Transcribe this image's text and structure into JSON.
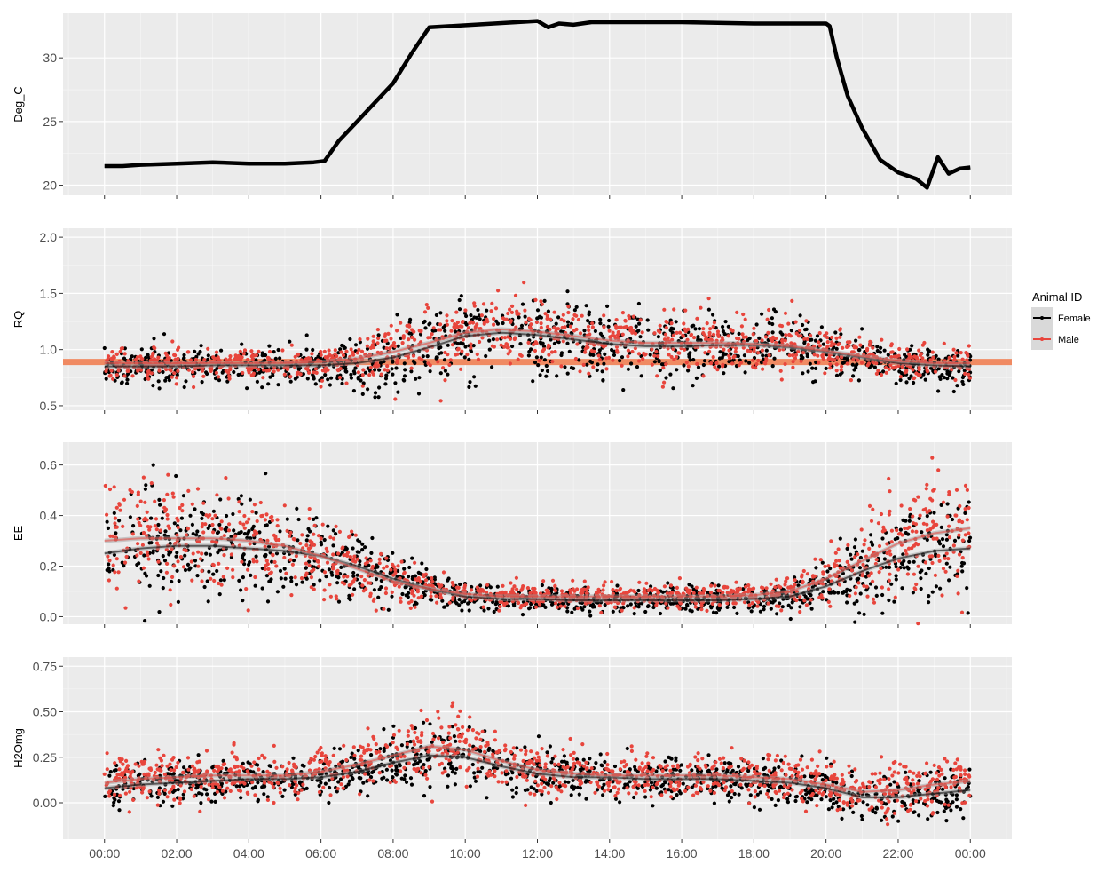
{
  "chart_data": {
    "type": "scatter",
    "x_ticks": [
      "00:00",
      "02:00",
      "04:00",
      "06:00",
      "08:00",
      "10:00",
      "12:00",
      "14:00",
      "16:00",
      "18:00",
      "20:00",
      "22:00",
      "00:00"
    ],
    "x_range_hours": [
      -1.15,
      25.15
    ],
    "legend": {
      "title": "Animal ID",
      "position": "right",
      "entries": [
        {
          "label": "Female",
          "color": "#000000"
        },
        {
          "label": "Male",
          "color": "#E8453C"
        }
      ]
    },
    "panels": [
      {
        "ylabel": "Deg_C",
        "ylim": [
          19.2,
          33.5
        ],
        "yticks": [
          20,
          25,
          30
        ],
        "ytick_labels": [
          "20",
          "25",
          "30"
        ],
        "series": [
          {
            "type": "line",
            "color": "#000000",
            "x_hours": [
              0,
              0.5,
              1,
              2,
              3,
              4,
              5,
              5.8,
              6.1,
              6.5,
              7,
              7.5,
              8,
              8.5,
              9,
              12,
              12.3,
              12.6,
              13,
              13.5,
              14,
              16,
              18,
              20,
              20.1,
              20.3,
              20.6,
              21,
              21.5,
              22,
              22.5,
              22.8,
              23.1,
              23.4,
              23.7,
              24
            ],
            "y": [
              21.5,
              21.5,
              21.6,
              21.7,
              21.8,
              21.7,
              21.7,
              21.8,
              21.9,
              23.5,
              25,
              26.5,
              28,
              30.3,
              32.4,
              32.9,
              32.4,
              32.7,
              32.6,
              32.8,
              32.8,
              32.8,
              32.7,
              32.7,
              32.5,
              30,
              27,
              24.5,
              22,
              21,
              20.5,
              19.8,
              22.2,
              20.9,
              21.3,
              21.4
            ]
          }
        ]
      },
      {
        "ylabel": "RQ",
        "ylim": [
          0.46,
          2.08
        ],
        "yticks": [
          0.5,
          1.0,
          1.5,
          2.0
        ],
        "ytick_labels": [
          "0.5",
          "1.0",
          "1.5",
          "2.0"
        ],
        "hline": {
          "y": 0.89,
          "color": "#F08A62"
        },
        "series": [
          {
            "name": "Female",
            "type": "scatter+smooth",
            "color": "#000000",
            "count": 1150,
            "seed": 11,
            "noise_sd": 0.09,
            "noise_scale": [
              0.9,
              0.9,
              0.9,
              0.9,
              0.9,
              0.9,
              1.0,
              1.4,
              1.8,
              2.0,
              2.0,
              2.0,
              2.0,
              2.0,
              1.9,
              1.8,
              1.7,
              1.6,
              1.6,
              1.6,
              1.3,
              1.0,
              0.9,
              0.9,
              0.9
            ],
            "trend": [
              0.85,
              0.85,
              0.85,
              0.86,
              0.86,
              0.86,
              0.86,
              0.88,
              0.93,
              1.02,
              1.12,
              1.15,
              1.13,
              1.09,
              1.05,
              1.03,
              1.03,
              1.04,
              1.04,
              1.02,
              0.98,
              0.93,
              0.88,
              0.86,
              0.85
            ]
          },
          {
            "name": "Male",
            "type": "scatter+smooth",
            "color": "#E8453C",
            "count": 1150,
            "seed": 23,
            "noise_sd": 0.075,
            "noise_scale": [
              0.9,
              0.9,
              0.9,
              0.9,
              0.9,
              0.9,
              1.0,
              1.4,
              1.8,
              2.0,
              2.0,
              2.0,
              2.0,
              2.0,
              1.9,
              1.8,
              1.7,
              1.6,
              1.6,
              1.6,
              1.3,
              1.0,
              0.9,
              0.9,
              0.9
            ],
            "trend": [
              0.88,
              0.88,
              0.88,
              0.88,
              0.88,
              0.88,
              0.89,
              0.92,
              0.98,
              1.06,
              1.15,
              1.18,
              1.16,
              1.12,
              1.08,
              1.06,
              1.06,
              1.06,
              1.05,
              1.03,
              0.99,
              0.94,
              0.9,
              0.88,
              0.88
            ]
          }
        ]
      },
      {
        "ylabel": "EE",
        "ylim": [
          -0.03,
          0.69
        ],
        "yticks": [
          0.0,
          0.2,
          0.4,
          0.6
        ],
        "ytick_labels": [
          "0.0",
          "0.2",
          "0.4",
          "0.6"
        ],
        "series": [
          {
            "name": "Female",
            "type": "scatter+smooth",
            "color": "#000000",
            "count": 1150,
            "seed": 37,
            "noise_sd": 0.06,
            "noise_scale": [
              1.8,
              1.8,
              1.8,
              1.8,
              1.7,
              1.6,
              1.4,
              1.1,
              0.8,
              0.5,
              0.4,
              0.4,
              0.4,
              0.4,
              0.4,
              0.4,
              0.4,
              0.4,
              0.4,
              0.5,
              0.9,
              1.4,
              1.7,
              1.8,
              1.8
            ],
            "trend": [
              0.25,
              0.27,
              0.28,
              0.28,
              0.27,
              0.26,
              0.24,
              0.2,
              0.15,
              0.11,
              0.08,
              0.07,
              0.07,
              0.065,
              0.065,
              0.065,
              0.065,
              0.065,
              0.07,
              0.08,
              0.12,
              0.18,
              0.23,
              0.26,
              0.27
            ]
          },
          {
            "name": "Male",
            "type": "scatter+smooth",
            "color": "#E8453C",
            "count": 1150,
            "seed": 41,
            "noise_sd": 0.06,
            "noise_scale": [
              1.8,
              1.8,
              1.8,
              1.8,
              1.7,
              1.6,
              1.4,
              1.1,
              0.8,
              0.5,
              0.4,
              0.4,
              0.4,
              0.4,
              0.4,
              0.4,
              0.4,
              0.4,
              0.4,
              0.5,
              0.9,
              1.4,
              1.7,
              1.8,
              1.8
            ],
            "trend": [
              0.3,
              0.31,
              0.31,
              0.31,
              0.3,
              0.28,
              0.24,
              0.19,
              0.14,
              0.11,
              0.09,
              0.08,
              0.08,
              0.08,
              0.08,
              0.08,
              0.08,
              0.08,
              0.085,
              0.1,
              0.15,
              0.22,
              0.29,
              0.33,
              0.35
            ]
          }
        ]
      },
      {
        "ylabel": "H2Omg",
        "ylim": [
          -0.2,
          0.8
        ],
        "yticks": [
          0.0,
          0.25,
          0.5,
          0.75
        ],
        "ytick_labels": [
          "0.00",
          "0.25",
          "0.50",
          "0.75"
        ],
        "series": [
          {
            "name": "Female",
            "type": "scatter+smooth",
            "color": "#000000",
            "count": 1150,
            "seed": 53,
            "noise_sd": 0.055,
            "noise_scale": [
              1,
              1,
              1,
              1,
              1,
              1,
              1,
              1.1,
              1.3,
              1.6,
              1.7,
              1.4,
              1.2,
              1.1,
              1,
              1,
              1,
              1,
              1,
              1,
              1.1,
              1.2,
              1.2,
              1.1,
              1.1
            ],
            "trend": [
              0.08,
              0.1,
              0.11,
              0.12,
              0.13,
              0.13,
              0.14,
              0.17,
              0.22,
              0.26,
              0.25,
              0.2,
              0.16,
              0.14,
              0.14,
              0.13,
              0.13,
              0.13,
              0.12,
              0.11,
              0.08,
              0.03,
              0.03,
              0.05,
              0.07
            ]
          },
          {
            "name": "Male",
            "type": "scatter+smooth",
            "color": "#E8453C",
            "count": 1150,
            "seed": 67,
            "noise_sd": 0.06,
            "noise_scale": [
              1,
              1,
              1,
              1,
              1,
              1,
              1,
              1.1,
              1.3,
              1.6,
              1.7,
              1.4,
              1.2,
              1.1,
              1,
              1,
              1,
              1,
              1,
              1,
              1.1,
              1.2,
              1.2,
              1.1,
              1.1
            ],
            "trend": [
              0.11,
              0.13,
              0.14,
              0.15,
              0.15,
              0.15,
              0.17,
              0.21,
              0.26,
              0.31,
              0.29,
              0.23,
              0.18,
              0.16,
              0.15,
              0.15,
              0.15,
              0.15,
              0.14,
              0.13,
              0.1,
              0.06,
              0.07,
              0.1,
              0.12
            ]
          }
        ]
      }
    ]
  }
}
